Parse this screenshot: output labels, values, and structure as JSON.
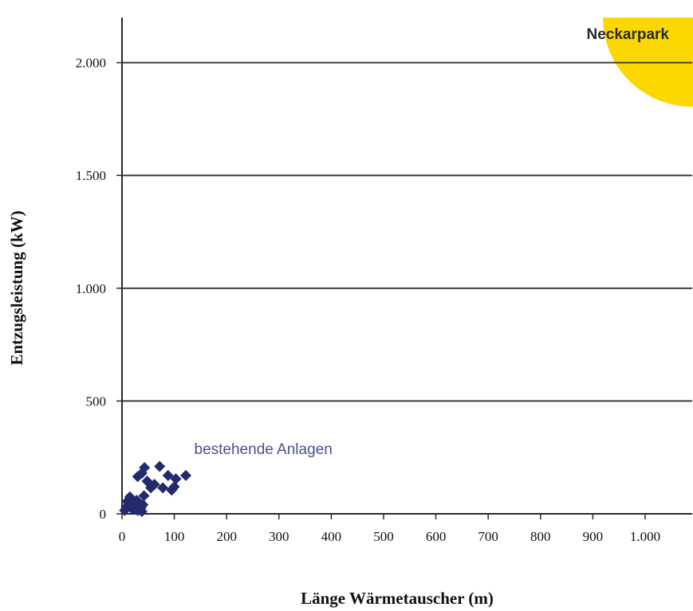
{
  "chart_data": {
    "type": "scatter",
    "title": "",
    "xlabel": "Länge Wärmetauscher (m)",
    "ylabel": "Entzugsleistung (kW)",
    "xlim": [
      0,
      1090
    ],
    "ylim": [
      0,
      2200
    ],
    "grid": true,
    "x_ticks": [
      0,
      100,
      200,
      300,
      400,
      500,
      600,
      700,
      800,
      900,
      1000
    ],
    "x_tick_labels": [
      "0",
      "100",
      "200",
      "300",
      "400",
      "500",
      "600",
      "700",
      "800",
      "900",
      "1.000"
    ],
    "y_ticks": [
      0,
      500,
      1000,
      1500,
      2000
    ],
    "y_tick_labels": [
      "0",
      "500",
      "1.000",
      "1.500",
      "2.000"
    ],
    "series": [
      {
        "name": "bestehende Anlagen",
        "marker": "diamond",
        "color": "#232a6e",
        "points": [
          {
            "x": 5,
            "y": 15
          },
          {
            "x": 8,
            "y": 30
          },
          {
            "x": 10,
            "y": 55
          },
          {
            "x": 15,
            "y": 75
          },
          {
            "x": 18,
            "y": 40
          },
          {
            "x": 20,
            "y": 20
          },
          {
            "x": 24,
            "y": 40
          },
          {
            "x": 28,
            "y": 60
          },
          {
            "x": 30,
            "y": 15
          },
          {
            "x": 33,
            "y": 35
          },
          {
            "x": 36,
            "y": 25
          },
          {
            "x": 38,
            "y": 10
          },
          {
            "x": 40,
            "y": 40
          },
          {
            "x": 42,
            "y": 80
          },
          {
            "x": 30,
            "y": 165
          },
          {
            "x": 38,
            "y": 180
          },
          {
            "x": 43,
            "y": 205
          },
          {
            "x": 48,
            "y": 145
          },
          {
            "x": 55,
            "y": 115
          },
          {
            "x": 62,
            "y": 130
          },
          {
            "x": 72,
            "y": 210
          },
          {
            "x": 78,
            "y": 115
          },
          {
            "x": 88,
            "y": 170
          },
          {
            "x": 95,
            "y": 105
          },
          {
            "x": 100,
            "y": 120
          },
          {
            "x": 103,
            "y": 155
          },
          {
            "x": 122,
            "y": 170
          }
        ]
      },
      {
        "name": "Neckarpark",
        "marker": "circle",
        "color": "#fcd800",
        "points": [
          {
            "x": 1090,
            "y": 2200
          }
        ]
      }
    ],
    "annotations": [
      {
        "text": "bestehende Anlagen",
        "x": 138,
        "y": 265,
        "style": "blue"
      },
      {
        "text": "Neckarpark",
        "x": 888,
        "y": 2105,
        "style": "dark"
      }
    ]
  }
}
